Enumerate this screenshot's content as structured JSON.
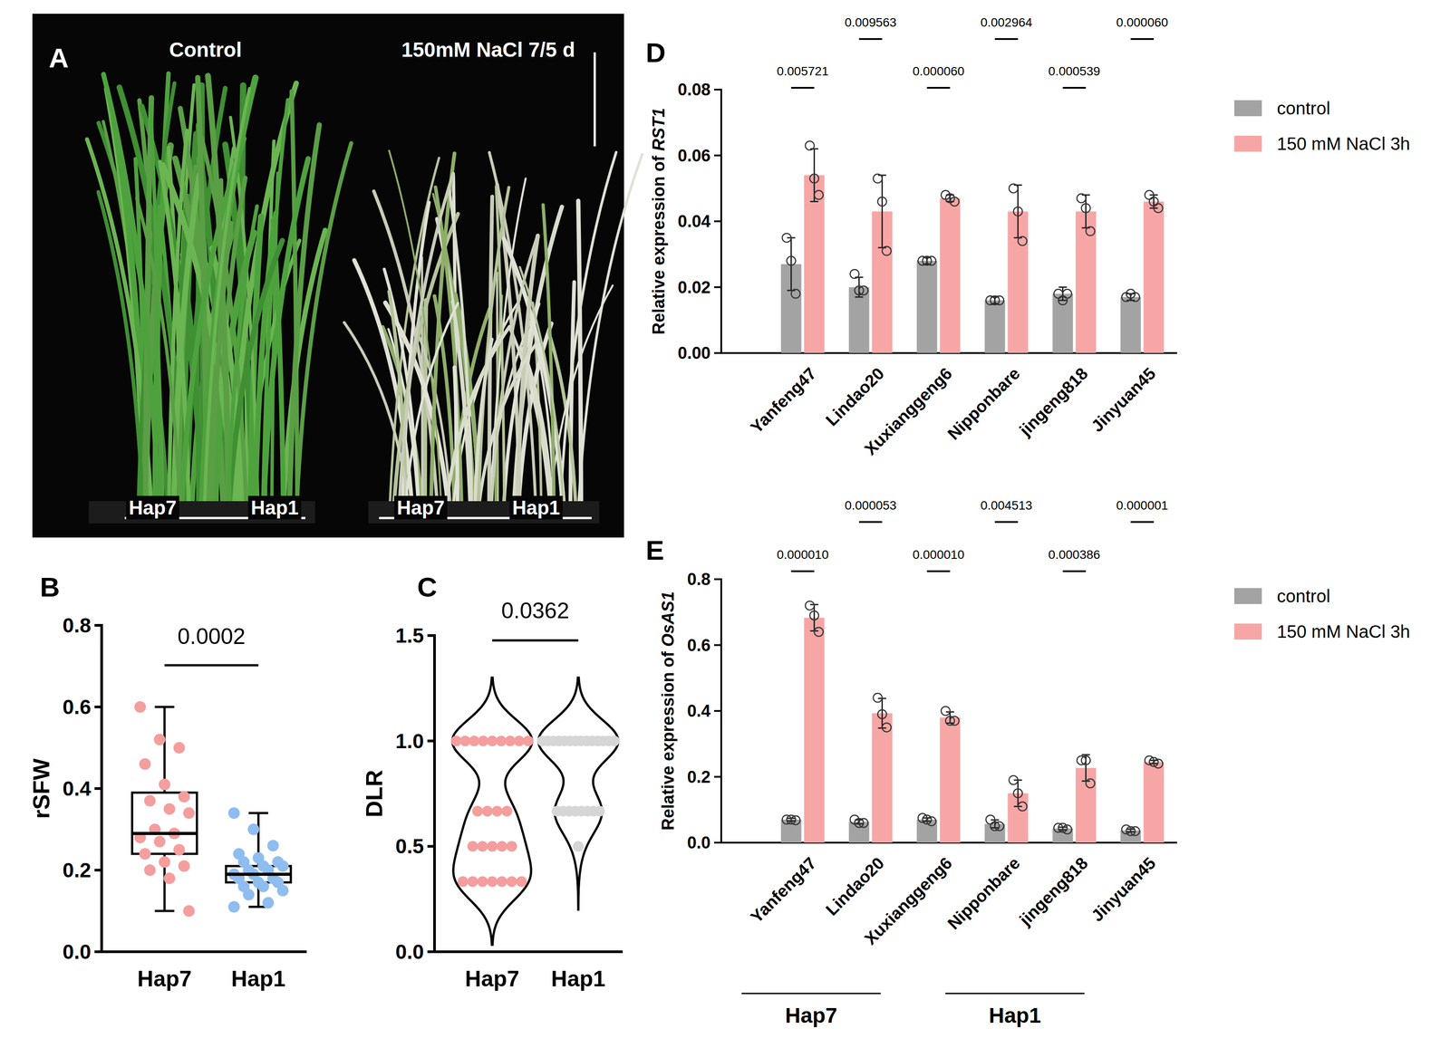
{
  "photo": {
    "panel_label": "A",
    "titles": [
      "Control",
      "150mM NaCl 7/5 d"
    ],
    "labels": [
      "Hap7",
      "Hap1",
      "Hap7",
      "Hap1"
    ]
  },
  "chart_data": [
    {
      "type": "box",
      "panel_label": "B",
      "y_label": "rSFW",
      "categories": [
        "Hap7",
        "Hap1"
      ],
      "colors": [
        "#f49e9e",
        "#8fbdf0"
      ],
      "ylim": [
        0,
        0.8
      ],
      "yticks": [
        {
          "value": 0,
          "label": "0.0"
        },
        {
          "value": 0.2,
          "label": "0.2"
        },
        {
          "value": 0.4,
          "label": "0.4"
        },
        {
          "value": 0.6,
          "label": "0.6"
        },
        {
          "value": 0.8,
          "label": "0.8"
        }
      ],
      "box": [
        {
          "min": 0.1,
          "q1": 0.24,
          "median": 0.29,
          "q3": 0.39,
          "max": 0.6
        },
        {
          "min": 0.11,
          "q1": 0.17,
          "median": 0.19,
          "q3": 0.21,
          "max": 0.34
        }
      ],
      "points": [
        [
          0.6,
          0.52,
          0.5,
          0.46,
          0.41,
          0.38,
          0.37,
          0.35,
          0.34,
          0.3,
          0.29,
          0.28,
          0.27,
          0.25,
          0.24,
          0.22,
          0.21,
          0.2,
          0.18,
          0.1
        ],
        [
          0.34,
          0.3,
          0.26,
          0.24,
          0.23,
          0.22,
          0.22,
          0.21,
          0.21,
          0.2,
          0.2,
          0.19,
          0.19,
          0.18,
          0.18,
          0.17,
          0.17,
          0.16,
          0.16,
          0.15,
          0.14,
          0.12,
          0.11
        ]
      ],
      "annotations": [
        "0.0002"
      ]
    },
    {
      "type": "violin",
      "panel_label": "C",
      "y_label": "DLR",
      "categories": [
        "Hap7",
        "Hap1"
      ],
      "colors": [
        "#f49e9e",
        "#d6d6d6"
      ],
      "ylim": [
        0,
        1.5
      ],
      "yticks": [
        {
          "value": 0,
          "label": "0.0"
        },
        {
          "value": 0.5,
          "label": "0.5"
        },
        {
          "value": 1,
          "label": "1.0"
        },
        {
          "value": 1.5,
          "label": "1.5"
        }
      ],
      "points": [
        [
          1,
          1,
          1,
          1,
          1,
          1,
          1,
          1,
          1,
          0.667,
          0.667,
          0.667,
          0.667,
          0.5,
          0.5,
          0.5,
          0.5,
          0.5,
          0.333,
          0.333,
          0.333,
          0.333,
          0.333,
          0.333,
          0.333
        ],
        [
          1,
          1,
          1,
          1,
          1,
          1,
          1,
          1,
          1,
          1,
          1,
          1,
          1,
          1,
          0.667,
          0.667,
          0.667,
          0.667,
          0.667,
          0.667,
          0.667,
          0.667,
          0.5
        ]
      ],
      "annotations": [
        "0.0362"
      ]
    },
    {
      "type": "bar",
      "panel_label": "D",
      "y_label": "Relative expression of RST1",
      "categories": [
        "Yanfeng47",
        "Lindao20",
        "Xuxianggeng6",
        "Nipponbare",
        "jingeng818",
        "Jinyuan45"
      ],
      "series": [
        {
          "name": "control",
          "color": "#a3a3a3",
          "values": [
            0.027,
            0.02,
            0.028,
            0.016,
            0.018,
            0.017
          ],
          "errors": [
            0.008,
            0.003,
            0.001,
            0.001,
            0.002,
            0.001
          ],
          "points": [
            [
              0.035,
              0.028,
              0.018
            ],
            [
              0.024,
              0.019,
              0.019
            ],
            [
              0.028,
              0.028,
              0.028
            ],
            [
              0.016,
              0.016,
              0.016
            ],
            [
              0.018,
              0.016,
              0.018
            ],
            [
              0.017,
              0.018,
              0.017
            ]
          ]
        },
        {
          "name": "150 mM NaCl 3h",
          "color": "#f7a6a6",
          "values": [
            0.054,
            0.043,
            0.047,
            0.043,
            0.043,
            0.046
          ],
          "errors": [
            0.008,
            0.011,
            0.001,
            0.008,
            0.005,
            0.002
          ],
          "points": [
            [
              0.063,
              0.053,
              0.048
            ],
            [
              0.053,
              0.046,
              0.031
            ],
            [
              0.048,
              0.047,
              0.046
            ],
            [
              0.05,
              0.043,
              0.034
            ],
            [
              0.047,
              0.044,
              0.037
            ],
            [
              0.048,
              0.046,
              0.044
            ]
          ]
        }
      ],
      "ylim": [
        0,
        0.08
      ],
      "yticks": [
        {
          "value": 0,
          "label": "0.00"
        },
        {
          "value": 0.02,
          "label": "0.02"
        },
        {
          "value": 0.04,
          "label": "0.04"
        },
        {
          "value": 0.06,
          "label": "0.06"
        },
        {
          "value": 0.08,
          "label": "0.08"
        }
      ],
      "legend": "right",
      "annotations": [
        "0.005721",
        "0.009563",
        "0.000060",
        "0.002964",
        "0.000539",
        "0.000060"
      ]
    },
    {
      "type": "bar",
      "panel_label": "E",
      "y_label": "Relative expression of OsAS1",
      "categories": [
        "Yanfeng47",
        "Lindao20",
        "Xuxianggeng6",
        "Nipponbare",
        "jingeng818",
        "Jinyuan45"
      ],
      "series": [
        {
          "name": "control",
          "color": "#a3a3a3",
          "values": [
            0.07,
            0.063,
            0.07,
            0.057,
            0.043,
            0.037
          ],
          "errors": [
            0.004,
            0.006,
            0.005,
            0.012,
            0.004,
            0.004
          ],
          "points": [
            [
              0.07,
              0.07,
              0.068
            ],
            [
              0.07,
              0.06,
              0.06
            ],
            [
              0.075,
              0.07,
              0.065
            ],
            [
              0.07,
              0.05,
              0.05
            ],
            [
              0.045,
              0.045,
              0.04
            ],
            [
              0.04,
              0.035,
              0.035
            ]
          ]
        },
        {
          "name": "150 mM NaCl 3h",
          "color": "#f7a6a6",
          "values": [
            0.683,
            0.393,
            0.38,
            0.15,
            0.227,
            0.245
          ],
          "errors": [
            0.04,
            0.045,
            0.017,
            0.04,
            0.04,
            0.005
          ],
          "points": [
            [
              0.72,
              0.69,
              0.64
            ],
            [
              0.44,
              0.39,
              0.35
            ],
            [
              0.4,
              0.37,
              0.37
            ],
            [
              0.19,
              0.15,
              0.11
            ],
            [
              0.25,
              0.25,
              0.18
            ],
            [
              0.25,
              0.245,
              0.24
            ]
          ]
        }
      ],
      "ylim": [
        0,
        0.8
      ],
      "yticks": [
        {
          "value": 0,
          "label": "0.0"
        },
        {
          "value": 0.2,
          "label": "0.2"
        },
        {
          "value": 0.4,
          "label": "0.4"
        },
        {
          "value": 0.6,
          "label": "0.6"
        },
        {
          "value": 0.8,
          "label": "0.8"
        }
      ],
      "legend": "right",
      "annotations": [
        "0.000010",
        "0.000053",
        "0.000010",
        "0.004513",
        "0.000386",
        "0.000001"
      ],
      "groups": [
        {
          "label": "Hap7",
          "categories": [
            "Yanfeng47",
            "Lindao20",
            "Xuxianggeng6"
          ]
        },
        {
          "label": "Hap1",
          "categories": [
            "Nipponbare",
            "jingeng818",
            "Jinyuan45"
          ]
        }
      ]
    }
  ]
}
